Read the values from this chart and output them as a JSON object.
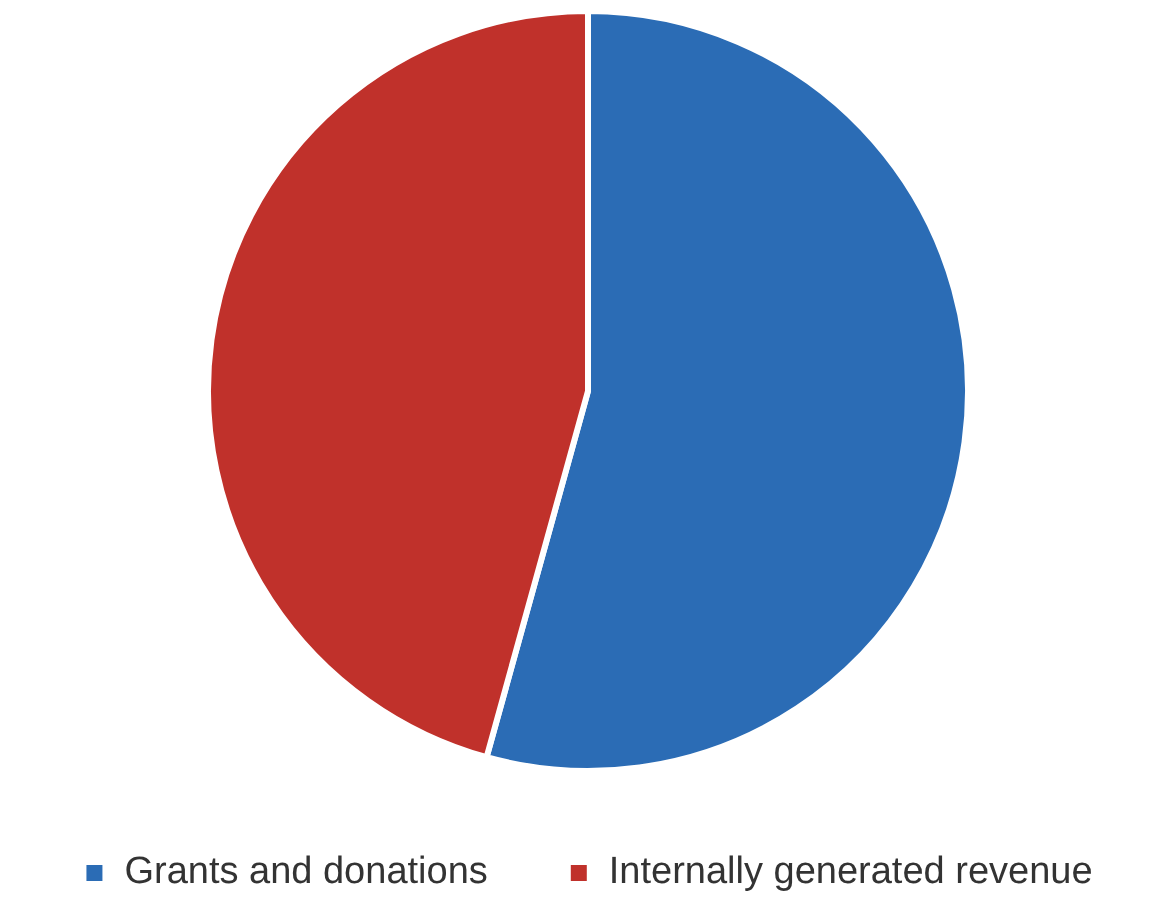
{
  "chart_data": {
    "type": "pie",
    "categories": [
      "Grants and donations",
      "Internally generated revenue"
    ],
    "values": [
      54.3,
      45.7
    ],
    "colors": [
      "#2b6cb5",
      "#c0312b"
    ],
    "legend": "bottom"
  }
}
